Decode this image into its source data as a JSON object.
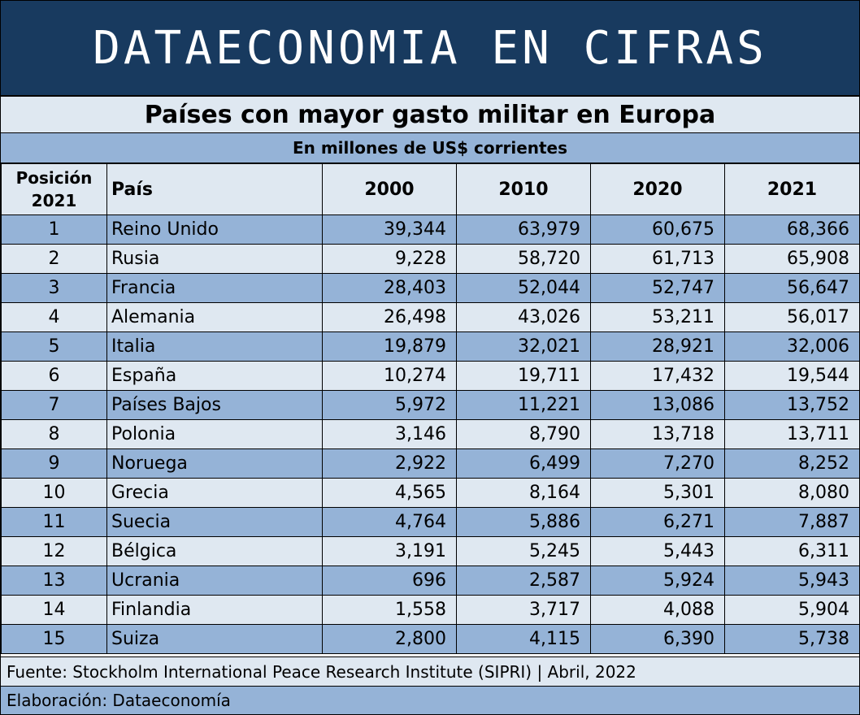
{
  "banner": {
    "title": "DATAECONOMIA EN CIFRAS"
  },
  "table": {
    "title": "Países con mayor gasto militar en Europa",
    "subtitle": "En millones de US$ corrientes",
    "headers": {
      "position_line1": "Posición",
      "position_line2": "2021",
      "country": "País",
      "y2000": "2000",
      "y2010": "2010",
      "y2020": "2020",
      "y2021": "2021"
    },
    "rows": [
      {
        "rank": "1",
        "country": "Reino Unido",
        "y2000": "39,344",
        "y2010": "63,979",
        "y2020": "60,675",
        "y2021": "68,366"
      },
      {
        "rank": "2",
        "country": "Rusia",
        "y2000": "9,228",
        "y2010": "58,720",
        "y2020": "61,713",
        "y2021": "65,908"
      },
      {
        "rank": "3",
        "country": "Francia",
        "y2000": "28,403",
        "y2010": "52,044",
        "y2020": "52,747",
        "y2021": "56,647"
      },
      {
        "rank": "4",
        "country": "Alemania",
        "y2000": "26,498",
        "y2010": "43,026",
        "y2020": "53,211",
        "y2021": "56,017"
      },
      {
        "rank": "5",
        "country": "Italia",
        "y2000": "19,879",
        "y2010": "32,021",
        "y2020": "28,921",
        "y2021": "32,006"
      },
      {
        "rank": "6",
        "country": "España",
        "y2000": "10,274",
        "y2010": "19,711",
        "y2020": "17,432",
        "y2021": "19,544"
      },
      {
        "rank": "7",
        "country": "Países Bajos",
        "y2000": "5,972",
        "y2010": "11,221",
        "y2020": "13,086",
        "y2021": "13,752"
      },
      {
        "rank": "8",
        "country": "Polonia",
        "y2000": "3,146",
        "y2010": "8,790",
        "y2020": "13,718",
        "y2021": "13,711"
      },
      {
        "rank": "9",
        "country": "Noruega",
        "y2000": "2,922",
        "y2010": "6,499",
        "y2020": "7,270",
        "y2021": "8,252"
      },
      {
        "rank": "10",
        "country": "Grecia",
        "y2000": "4,565",
        "y2010": "8,164",
        "y2020": "5,301",
        "y2021": "8,080"
      },
      {
        "rank": "11",
        "country": "Suecia",
        "y2000": "4,764",
        "y2010": "5,886",
        "y2020": "6,271",
        "y2021": "7,887"
      },
      {
        "rank": "12",
        "country": "Bélgica",
        "y2000": "3,191",
        "y2010": "5,245",
        "y2020": "5,443",
        "y2021": "6,311"
      },
      {
        "rank": "13",
        "country": "Ucrania",
        "y2000": "696",
        "y2010": "2,587",
        "y2020": "5,924",
        "y2021": "5,943"
      },
      {
        "rank": "14",
        "country": "Finlandia",
        "y2000": "1,558",
        "y2010": "3,717",
        "y2020": "4,088",
        "y2021": "5,904"
      },
      {
        "rank": "15",
        "country": "Suiza",
        "y2000": "2,800",
        "y2010": "4,115",
        "y2020": "6,390",
        "y2021": "5,738"
      }
    ]
  },
  "footer": {
    "source": "Fuente: Stockholm International Peace Research Institute (SIPRI) | Abril, 2022",
    "credit": "Elaboración: Dataeconomía"
  },
  "colors": {
    "banner": "#183a5f",
    "row_dark": "#95b3d7",
    "row_light": "#dfe8f1"
  }
}
